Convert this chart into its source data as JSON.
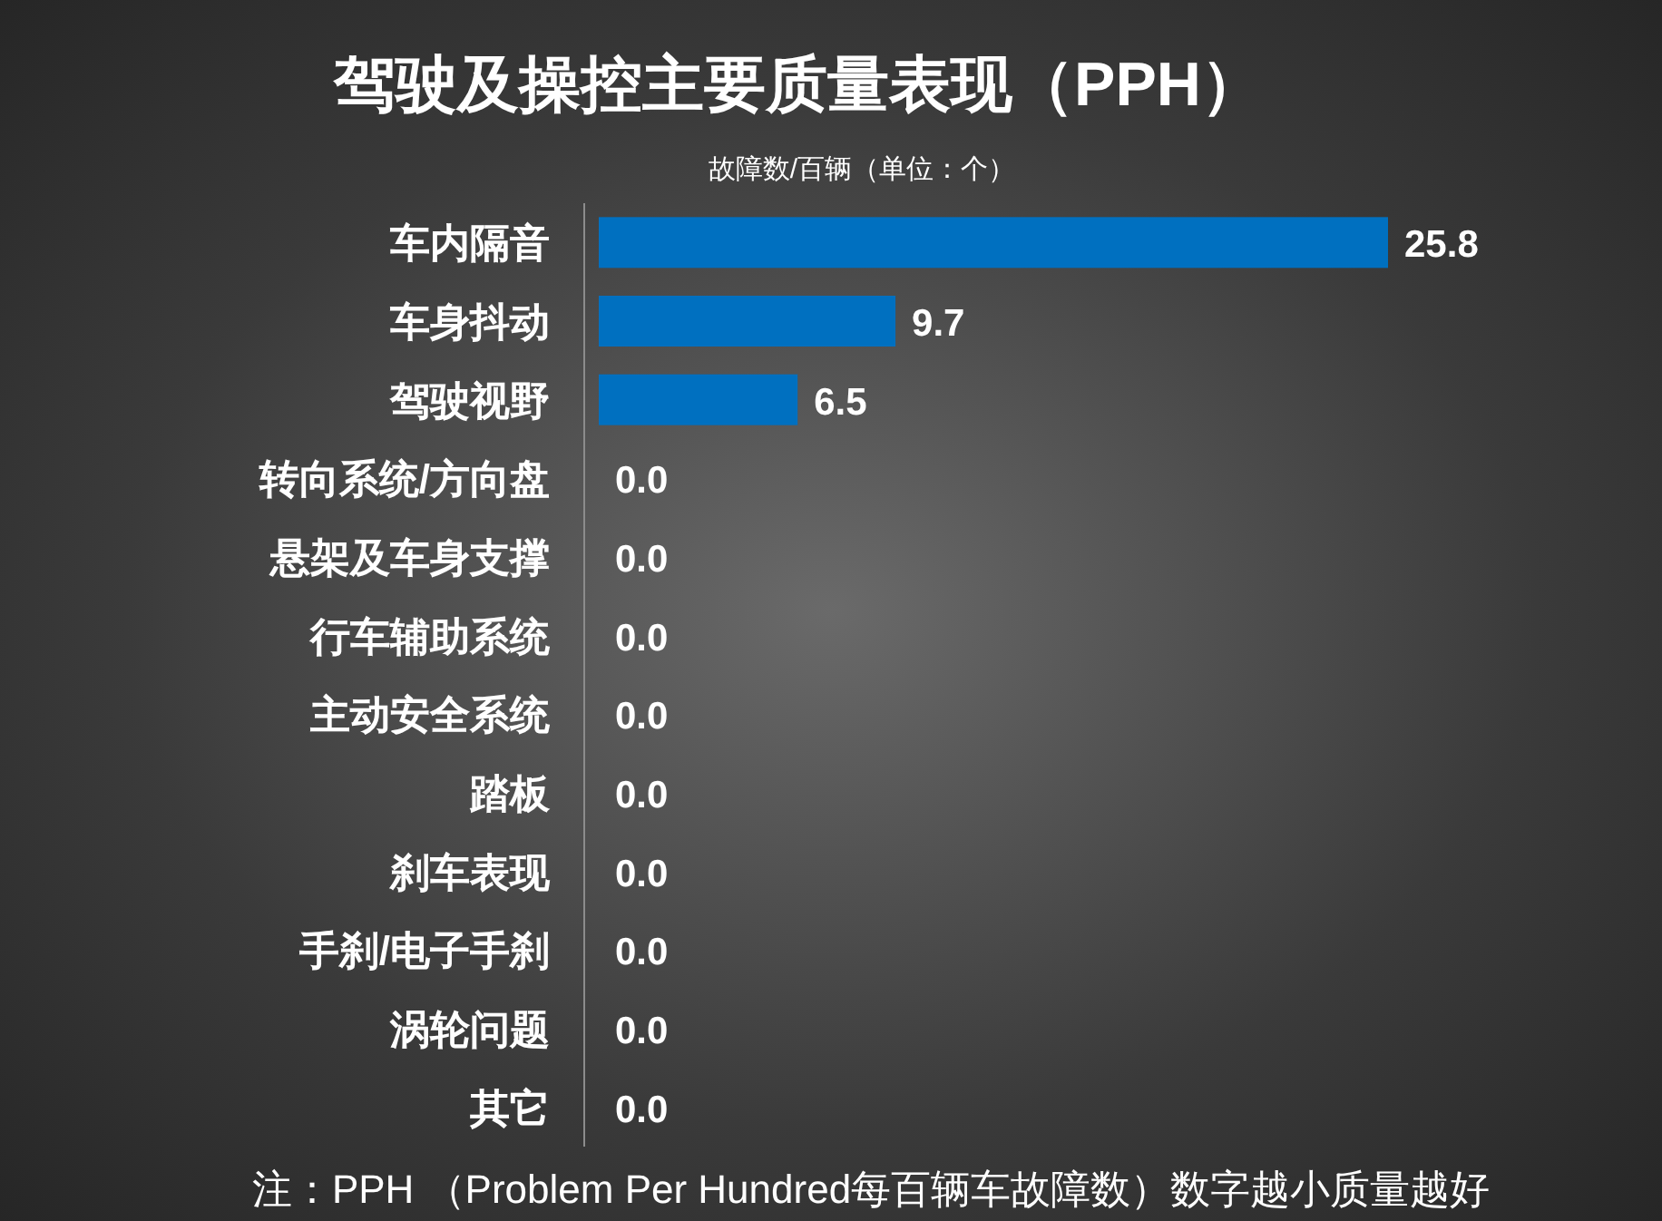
{
  "chart_data": {
    "type": "bar",
    "orientation": "horizontal",
    "title": "驾驶及操控主要质量表现（PPH）",
    "subtitle": "故障数/百辆（单位：个）",
    "categories": [
      "车内隔音",
      "车身抖动",
      "驾驶视野",
      "转向系统/方向盘",
      "悬架及车身支撑",
      "行车辅助系统",
      "主动安全系统",
      "踏板",
      "刹车表现",
      "手刹/电子手刹",
      "涡轮问题",
      "其它"
    ],
    "values": [
      25.8,
      9.7,
      6.5,
      0.0,
      0.0,
      0.0,
      0.0,
      0.0,
      0.0,
      0.0,
      0.0,
      0.0
    ],
    "value_labels": [
      "25.8",
      "9.7",
      "6.5",
      "0.0",
      "0.0",
      "0.0",
      "0.0",
      "0.0",
      "0.0",
      "0.0",
      "0.0",
      "0.0"
    ],
    "color": "#0070c0",
    "tick_labels": "y",
    "annotations": [
      "注：PPH （Problem Per Hundred每百辆车故障数）数字越小质量越好"
    ]
  }
}
